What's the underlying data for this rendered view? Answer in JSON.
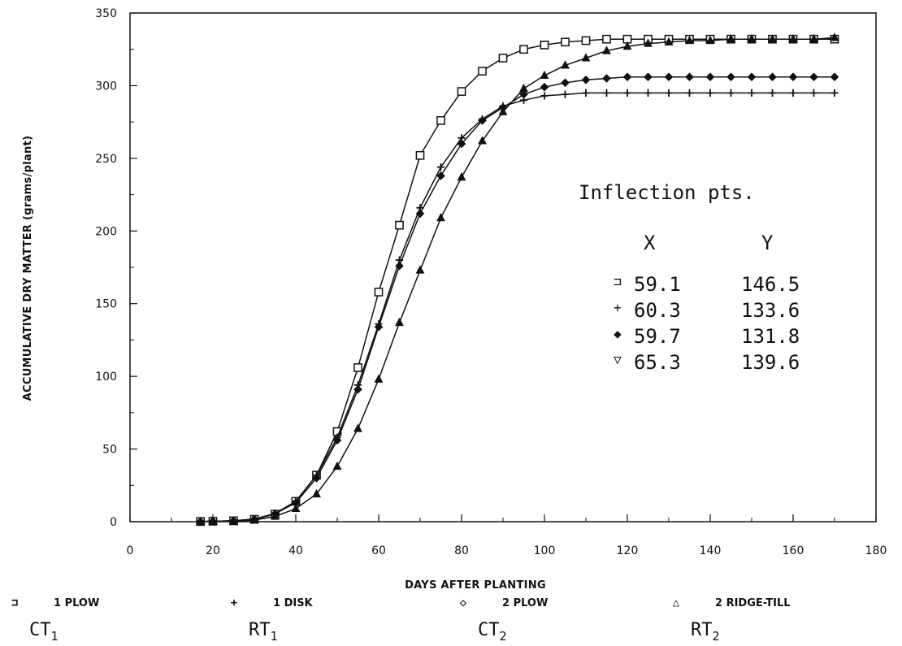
{
  "chart_data": {
    "type": "line",
    "xlabel": "DAYS AFTER PLANTING",
    "ylabel": "ACCUMULATIVE DRY MATTER (grams/plant)",
    "xlim": [
      0,
      180
    ],
    "ylim": [
      0,
      350
    ],
    "xticks": [
      0,
      20,
      40,
      60,
      80,
      100,
      120,
      140,
      160,
      180
    ],
    "yticks": [
      0,
      50,
      100,
      150,
      200,
      250,
      300,
      350
    ],
    "grid": false,
    "x": [
      17,
      20,
      25,
      30,
      35,
      40,
      45,
      50,
      55,
      60,
      65,
      70,
      75,
      80,
      85,
      90,
      95,
      100,
      105,
      110,
      115,
      120,
      125,
      130,
      135,
      140,
      145,
      150,
      155,
      160,
      165,
      170
    ],
    "series": [
      {
        "name": "1 PLOW",
        "marker": "square",
        "values": [
          0.1,
          0.3,
          0.6,
          1.6,
          5.2,
          14,
          32,
          62,
          106,
          158,
          204,
          252,
          276,
          296,
          310,
          319,
          325,
          328,
          330,
          331,
          332,
          332,
          332,
          332,
          332,
          332,
          332,
          332,
          332,
          332,
          332,
          332
        ]
      },
      {
        "name": "1 DISK",
        "marker": "plus",
        "values": [
          0.1,
          0.3,
          0.6,
          1.8,
          5.7,
          14,
          32,
          58,
          94,
          136,
          180,
          216,
          244,
          264,
          277,
          286,
          290,
          293,
          294,
          295,
          295,
          295,
          295,
          295,
          295,
          295,
          295,
          295,
          295,
          295,
          295,
          295
        ]
      },
      {
        "name": "2 PLOW",
        "marker": "diamond",
        "values": [
          0.1,
          0.3,
          0.6,
          1.7,
          5.4,
          13,
          30,
          56,
          91,
          134,
          176,
          212,
          238,
          260,
          276,
          285,
          294,
          299,
          302,
          304,
          305,
          306,
          306,
          306,
          306,
          306,
          306,
          306,
          306,
          306,
          306,
          306
        ]
      },
      {
        "name": "2 RIDGE-TILL",
        "marker": "triangle",
        "values": [
          0.1,
          0.2,
          0.4,
          1.1,
          3.6,
          9,
          19,
          38,
          64,
          98,
          137,
          173,
          209,
          237,
          262,
          282,
          298,
          307,
          314,
          319,
          324,
          327,
          329,
          330,
          331,
          331,
          332,
          332,
          332,
          332,
          332,
          333
        ]
      }
    ],
    "annotation": {
      "title": "Inflection pts.",
      "col_x": "X",
      "col_y": "Y",
      "rows": [
        {
          "sym": "⊐",
          "x": "59.1",
          "y": "146.5"
        },
        {
          "sym": "+",
          "x": "60.3",
          "y": "133.6"
        },
        {
          "sym": "◆",
          "x": "59.7",
          "y": "131.8"
        },
        {
          "sym": "▽",
          "x": "65.3",
          "y": "139.6"
        }
      ]
    },
    "legend": [
      {
        "sym": "⊐",
        "label": "1 PLOW",
        "group": "CT",
        "group_sub": "1"
      },
      {
        "sym": "+",
        "label": "1 DISK",
        "group": "RT",
        "group_sub": "1"
      },
      {
        "sym": "◇",
        "label": "2 PLOW",
        "group": "CT",
        "group_sub": "2"
      },
      {
        "sym": "△",
        "label": "2 RIDGE-TILL",
        "group": "RT",
        "group_sub": "2"
      }
    ],
    "legend_position": "bottom"
  }
}
